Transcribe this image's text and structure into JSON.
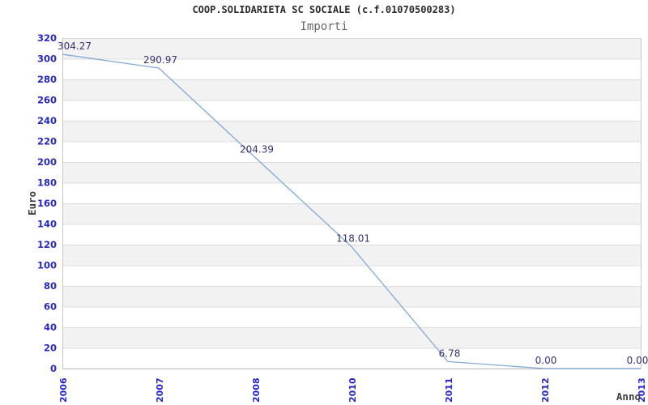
{
  "chart_data": {
    "type": "line",
    "title": "COOP.SOLIDARIETA SC SOCIALE (c.f.01070500283)",
    "subtitle": "Importi",
    "xlabel": "Anno",
    "ylabel": "Euro",
    "categories": [
      "2006",
      "2007",
      "2008",
      "2010",
      "2011",
      "2012",
      "2013"
    ],
    "values": [
      304.27,
      290.97,
      204.39,
      118.01,
      6.78,
      0.0,
      0.0
    ],
    "point_labels": [
      "304.27",
      "290.97",
      "204.39",
      "118.01",
      "6.78",
      "0.00",
      "0.00"
    ],
    "ylim": [
      0,
      320
    ],
    "ytick_step": 20,
    "yticks": [
      0,
      20,
      40,
      60,
      80,
      100,
      120,
      140,
      160,
      180,
      200,
      220,
      240,
      260,
      280,
      300,
      320
    ],
    "grid": "horizontal gridlines with alternating shaded bands",
    "legend_position": "none",
    "colors": {
      "line": "#82aad7",
      "tick_label": "#2626cc",
      "point_label": "#333377",
      "band": "#f2f2f2",
      "gridline": "#dcdcdc",
      "axis": "#b4b4b4",
      "border": "#c8c8c8",
      "title": "#2b2b2b",
      "subtitle": "#686868",
      "axis_label": "#3c3c3c"
    }
  }
}
